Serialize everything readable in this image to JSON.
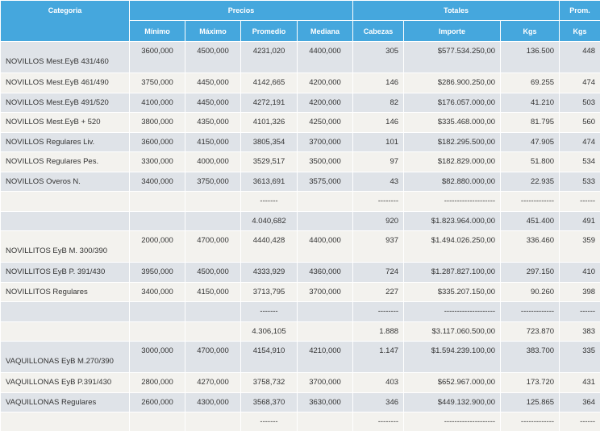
{
  "header": {
    "groups": [
      "Categoria",
      "Precios",
      "Totales",
      "Prom."
    ],
    "columns": [
      "Mínimo",
      "Máximo",
      "Promedio",
      "Mediana",
      "Cabezas",
      "Importe",
      "Kgs",
      "Kgs"
    ]
  },
  "table": {
    "rows": [
      [
        "NOVILLOS Mest.EyB 431/460",
        "3600,000",
        "4500,000",
        "4231,020",
        "4400,000",
        "305",
        "$577.534.250,00",
        "136.500",
        "448"
      ],
      [
        "NOVILLOS Mest.EyB 461/490",
        "3750,000",
        "4450,000",
        "4142,665",
        "4200,000",
        "146",
        "$286.900.250,00",
        "69.255",
        "474"
      ],
      [
        "NOVILLOS Mest.EyB 491/520",
        "4100,000",
        "4450,000",
        "4272,191",
        "4200,000",
        "82",
        "$176.057.000,00",
        "41.210",
        "503"
      ],
      [
        "NOVILLOS Mest.EyB + 520",
        "3800,000",
        "4350,000",
        "4101,326",
        "4250,000",
        "146",
        "$335.468.000,00",
        "81.795",
        "560"
      ],
      [
        "NOVILLOS Regulares Liv.",
        "3600,000",
        "4150,000",
        "3805,354",
        "3700,000",
        "101",
        "$182.295.500,00",
        "47.905",
        "474"
      ],
      [
        "NOVILLOS Regulares Pes.",
        "3300,000",
        "4000,000",
        "3529,517",
        "3500,000",
        "97",
        "$182.829.000,00",
        "51.800",
        "534"
      ],
      [
        "NOVILLOS Overos N.",
        "3400,000",
        "3750,000",
        "3613,691",
        "3575,000",
        "43",
        "$82.880.000,00",
        "22.935",
        "533"
      ],
      [
        null,
        null,
        null,
        "-------",
        null,
        "--------",
        "--------------------",
        "-------------",
        "------"
      ],
      [
        null,
        null,
        null,
        "4.040,682",
        null,
        "920",
        "$1.823.964.000,00",
        "451.400",
        "491"
      ],
      [
        "NOVILLITOS EyB M. 300/390",
        "2000,000",
        "4700,000",
        "4440,428",
        "4400,000",
        "937",
        "$1.494.026.250,00",
        "336.460",
        "359"
      ],
      [
        "NOVILLITOS EyB P. 391/430",
        "3950,000",
        "4500,000",
        "4333,929",
        "4360,000",
        "724",
        "$1.287.827.100,00",
        "297.150",
        "410"
      ],
      [
        "NOVILLITOS Regulares",
        "3400,000",
        "4150,000",
        "3713,795",
        "3700,000",
        "227",
        "$335.207.150,00",
        "90.260",
        "398"
      ],
      [
        null,
        null,
        null,
        "-------",
        null,
        "--------",
        "--------------------",
        "-------------",
        "------"
      ],
      [
        null,
        null,
        null,
        "4.306,105",
        null,
        "1.888",
        "$3.117.060.500,00",
        "723.870",
        "383"
      ],
      [
        "VAQUILLONAS EyB M.270/390",
        "3000,000",
        "4700,000",
        "4154,910",
        "4210,000",
        "1.147",
        "$1.594.239.100,00",
        "383.700",
        "335"
      ],
      [
        "VAQUILLONAS EyB P.391/430",
        "2800,000",
        "4270,000",
        "3758,732",
        "3700,000",
        "403",
        "$652.967.000,00",
        "173.720",
        "431"
      ],
      [
        "VAQUILLONAS Regulares",
        "2600,000",
        "4300,000",
        "3568,370",
        "3630,000",
        "346",
        "$449.132.900,00",
        "125.865",
        "364"
      ],
      [
        null,
        null,
        null,
        "-------",
        null,
        "--------",
        "--------------------",
        "-------------",
        "------"
      ]
    ]
  }
}
